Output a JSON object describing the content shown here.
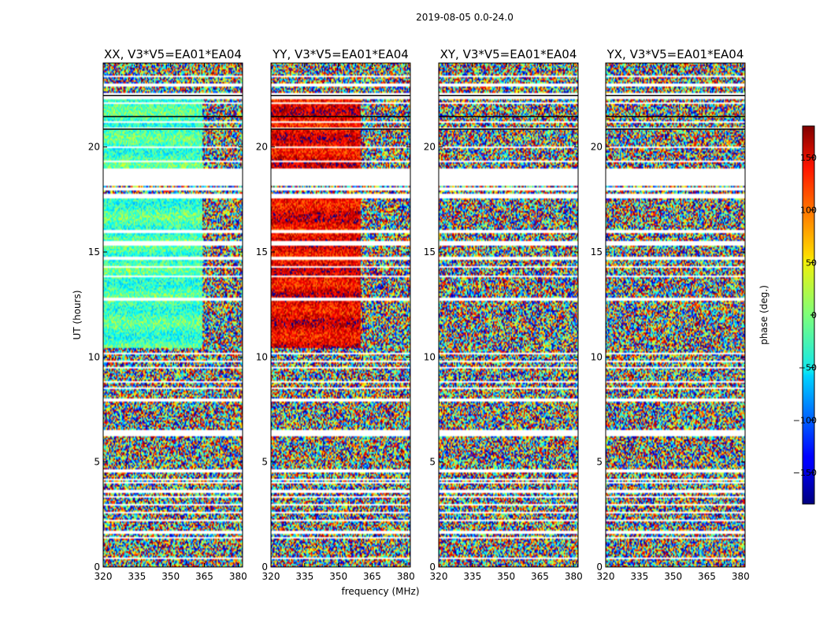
{
  "chart_data": {
    "type": "heatmap",
    "suptitle": "2019-08-05 0.0-24.0",
    "xlabel": "frequency (MHz)",
    "ylabel": "UT (hours)",
    "xlim": [
      320,
      382
    ],
    "ylim": [
      0,
      24
    ],
    "xticks": [
      320,
      335,
      350,
      365,
      380
    ],
    "yticks": [
      0,
      5,
      10,
      15,
      20
    ],
    "colorbar": {
      "label": "phase (deg.)",
      "range": [
        -180,
        180
      ],
      "ticks": [
        150,
        100,
        50,
        0,
        -50,
        -100,
        -150
      ],
      "tick_labels": [
        "150",
        "100",
        "50",
        "0",
        "−50",
        "−100",
        "−150"
      ],
      "colormap": "jet"
    },
    "panels": [
      {
        "title": "XX, V3*V5=EA01*EA04",
        "coherent_phase_deg": -20,
        "coherent_ranges_hours": [
          [
            10.4,
            17.6
          ],
          [
            18.9,
            22.4
          ]
        ],
        "coherent_max_mhz": 364
      },
      {
        "title": "YY, V3*V5=EA01*EA04",
        "coherent_phase_deg": 140,
        "coherent_ranges_hours": [
          [
            10.4,
            17.6
          ],
          [
            18.9,
            22.4
          ]
        ],
        "coherent_max_mhz": 360
      },
      {
        "title": "XY, V3*V5=EA01*EA04",
        "coherent_phase_deg": null,
        "coherent_ranges_hours": [],
        "coherent_max_mhz": null
      },
      {
        "title": "YX, V3*V5=EA01*EA04",
        "coherent_phase_deg": null,
        "coherent_ranges_hours": [],
        "coherent_max_mhz": null
      }
    ],
    "flagged_ut_hours": [
      [
        0.05,
        0.1
      ],
      [
        0.4,
        0.48
      ],
      [
        1.35,
        1.4
      ],
      [
        1.55,
        1.75
      ],
      [
        2.2,
        2.25
      ],
      [
        2.55,
        2.6
      ],
      [
        2.95,
        3.0
      ],
      [
        3.3,
        3.36
      ],
      [
        3.55,
        3.7
      ],
      [
        3.95,
        4.02
      ],
      [
        4.15,
        4.22
      ],
      [
        4.5,
        4.65
      ],
      [
        6.25,
        6.55
      ],
      [
        7.85,
        8.05
      ],
      [
        8.45,
        8.55
      ],
      [
        8.8,
        8.88
      ],
      [
        9.45,
        9.52
      ],
      [
        9.75,
        9.82
      ],
      [
        10.1,
        10.22
      ],
      [
        12.65,
        12.85
      ],
      [
        13.8,
        13.88
      ],
      [
        14.25,
        14.32
      ],
      [
        14.65,
        14.75
      ],
      [
        15.3,
        15.55
      ],
      [
        15.9,
        16.05
      ],
      [
        17.55,
        17.75
      ],
      [
        17.95,
        18.05
      ],
      [
        18.15,
        18.95
      ],
      [
        19.25,
        19.35
      ],
      [
        19.95,
        20.05
      ],
      [
        20.85,
        20.95
      ],
      [
        21.15,
        21.25
      ],
      [
        22.05,
        22.1
      ],
      [
        22.25,
        22.55
      ],
      [
        22.9,
        23.0
      ],
      [
        23.35,
        23.4
      ]
    ],
    "black_line_ut_hours": [
      20.85,
      21.45,
      22.45
    ]
  }
}
